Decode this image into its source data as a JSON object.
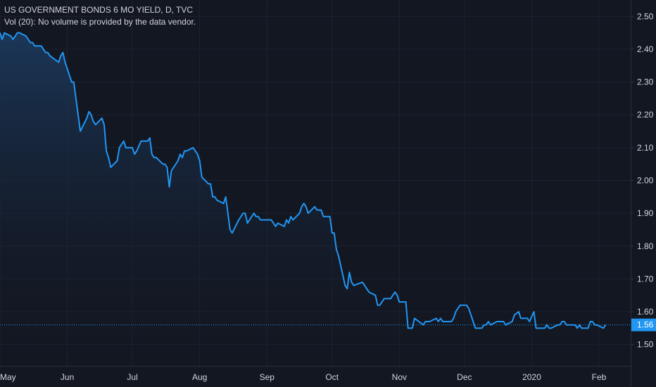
{
  "legend": {
    "title": "US GOVERNMENT BONDS 6 MO YIELD, D, TVC",
    "volume_note": "Vol (20): No volume is provided by the data vendor."
  },
  "colors": {
    "background": "#131722",
    "grid": "#1e2230",
    "line": "#2196f3",
    "area_top": "#1c3a5e",
    "text": "#d1d4dc",
    "last_price_label": "#2196f3"
  },
  "chart_data": {
    "type": "area",
    "title": "US GOVERNMENT BONDS 6 MO YIELD, D, TVC",
    "xlabel": "",
    "ylabel": "",
    "ylim": [
      1.435,
      2.55
    ],
    "yticks": [
      "2.50",
      "2.40",
      "2.30",
      "2.20",
      "2.10",
      "2.00",
      "1.90",
      "1.80",
      "1.70",
      "1.60",
      "1.50"
    ],
    "xticks": [
      {
        "label": "May",
        "date": "2019-05-01"
      },
      {
        "label": "Jun",
        "date": "2019-06-01"
      },
      {
        "label": "Jul",
        "date": "2019-07-01"
      },
      {
        "label": "Aug",
        "date": "2019-08-01"
      },
      {
        "label": "Sep",
        "date": "2019-09-01"
      },
      {
        "label": "Oct",
        "date": "2019-10-01"
      },
      {
        "label": "Nov",
        "date": "2019-11-01"
      },
      {
        "label": "Dec",
        "date": "2019-12-01"
      },
      {
        "label": "2020",
        "date": "2020-01-01"
      },
      {
        "label": "Feb",
        "date": "2020-02-01"
      }
    ],
    "last_value": "1.56",
    "grid": true,
    "series": [
      {
        "x": [
          "2019-05-01",
          "2019-05-02",
          "2019-05-03",
          "2019-05-06",
          "2019-05-07",
          "2019-05-08",
          "2019-05-09",
          "2019-05-10",
          "2019-05-13",
          "2019-05-14",
          "2019-05-15",
          "2019-05-16",
          "2019-05-17",
          "2019-05-20",
          "2019-05-21",
          "2019-05-22",
          "2019-05-23",
          "2019-05-24",
          "2019-05-28",
          "2019-05-29",
          "2019-05-30",
          "2019-05-31",
          "2019-06-03",
          "2019-06-04",
          "2019-06-05",
          "2019-06-06",
          "2019-06-07",
          "2019-06-10",
          "2019-06-11",
          "2019-06-12",
          "2019-06-13",
          "2019-06-14",
          "2019-06-17",
          "2019-06-18",
          "2019-06-19",
          "2019-06-20",
          "2019-06-21",
          "2019-06-24",
          "2019-06-25",
          "2019-06-26",
          "2019-06-27",
          "2019-06-28",
          "2019-07-01",
          "2019-07-02",
          "2019-07-03",
          "2019-07-05",
          "2019-07-08",
          "2019-07-09",
          "2019-07-10",
          "2019-07-11",
          "2019-07-12",
          "2019-07-15",
          "2019-07-16",
          "2019-07-17",
          "2019-07-18",
          "2019-07-19",
          "2019-07-22",
          "2019-07-23",
          "2019-07-24",
          "2019-07-25",
          "2019-07-26",
          "2019-07-29",
          "2019-07-30",
          "2019-07-31",
          "2019-08-01",
          "2019-08-02",
          "2019-08-05",
          "2019-08-06",
          "2019-08-07",
          "2019-08-08",
          "2019-08-09",
          "2019-08-12",
          "2019-08-13",
          "2019-08-14",
          "2019-08-15",
          "2019-08-16",
          "2019-08-19",
          "2019-08-20",
          "2019-08-21",
          "2019-08-22",
          "2019-08-23",
          "2019-08-26",
          "2019-08-27",
          "2019-08-28",
          "2019-08-29",
          "2019-08-30",
          "2019-09-03",
          "2019-09-04",
          "2019-09-05",
          "2019-09-06",
          "2019-09-09",
          "2019-09-10",
          "2019-09-11",
          "2019-09-12",
          "2019-09-13",
          "2019-09-16",
          "2019-09-17",
          "2019-09-18",
          "2019-09-19",
          "2019-09-20",
          "2019-09-23",
          "2019-09-24",
          "2019-09-25",
          "2019-09-26",
          "2019-09-27",
          "2019-09-30",
          "2019-10-01",
          "2019-10-02",
          "2019-10-03",
          "2019-10-04",
          "2019-10-07",
          "2019-10-08",
          "2019-10-09",
          "2019-10-10",
          "2019-10-11",
          "2019-10-15",
          "2019-10-16",
          "2019-10-17",
          "2019-10-18",
          "2019-10-21",
          "2019-10-22",
          "2019-10-23",
          "2019-10-24",
          "2019-10-25",
          "2019-10-28",
          "2019-10-29",
          "2019-10-30",
          "2019-10-31",
          "2019-11-01",
          "2019-11-04",
          "2019-11-05",
          "2019-11-06",
          "2019-11-07",
          "2019-11-08",
          "2019-11-12",
          "2019-11-13",
          "2019-11-14",
          "2019-11-15",
          "2019-11-18",
          "2019-11-19",
          "2019-11-20",
          "2019-11-21",
          "2019-11-22",
          "2019-11-25",
          "2019-11-26",
          "2019-11-27",
          "2019-11-29",
          "2019-12-02",
          "2019-12-03",
          "2019-12-04",
          "2019-12-05",
          "2019-12-06",
          "2019-12-09",
          "2019-12-10",
          "2019-12-11",
          "2019-12-12",
          "2019-12-13",
          "2019-12-16",
          "2019-12-17",
          "2019-12-18",
          "2019-12-19",
          "2019-12-20",
          "2019-12-23",
          "2019-12-24",
          "2019-12-26",
          "2019-12-27",
          "2019-12-30",
          "2019-12-31",
          "2020-01-02",
          "2020-01-03",
          "2020-01-06",
          "2020-01-07",
          "2020-01-08",
          "2020-01-09",
          "2020-01-10",
          "2020-01-13",
          "2020-01-14",
          "2020-01-15",
          "2020-01-16",
          "2020-01-17",
          "2020-01-21",
          "2020-01-22",
          "2020-01-23",
          "2020-01-24",
          "2020-01-27",
          "2020-01-28",
          "2020-01-29",
          "2020-01-30",
          "2020-01-31",
          "2020-02-03",
          "2020-02-04"
        ],
        "values": [
          2.45,
          2.43,
          2.45,
          2.44,
          2.43,
          2.44,
          2.45,
          2.45,
          2.44,
          2.43,
          2.42,
          2.42,
          2.41,
          2.41,
          2.4,
          2.39,
          2.39,
          2.38,
          2.36,
          2.38,
          2.39,
          2.36,
          2.3,
          2.3,
          2.25,
          2.2,
          2.15,
          2.19,
          2.21,
          2.2,
          2.18,
          2.17,
          2.19,
          2.17,
          2.09,
          2.07,
          2.04,
          2.06,
          2.1,
          2.11,
          2.12,
          2.1,
          2.1,
          2.08,
          2.09,
          2.12,
          2.12,
          2.13,
          2.08,
          2.07,
          2.07,
          2.05,
          2.05,
          2.04,
          1.98,
          2.03,
          2.06,
          2.08,
          2.07,
          2.09,
          2.09,
          2.1,
          2.09,
          2.08,
          2.06,
          2.01,
          1.99,
          1.99,
          1.95,
          1.95,
          1.94,
          1.93,
          1.95,
          1.9,
          1.85,
          1.84,
          1.88,
          1.89,
          1.9,
          1.9,
          1.87,
          1.9,
          1.89,
          1.89,
          1.88,
          1.88,
          1.88,
          1.87,
          1.86,
          1.87,
          1.86,
          1.88,
          1.87,
          1.89,
          1.88,
          1.9,
          1.92,
          1.93,
          1.92,
          1.9,
          1.92,
          1.91,
          1.91,
          1.91,
          1.89,
          1.89,
          1.84,
          1.84,
          1.79,
          1.77,
          1.68,
          1.67,
          1.72,
          1.69,
          1.68,
          1.69,
          1.68,
          1.67,
          1.66,
          1.65,
          1.62,
          1.62,
          1.63,
          1.64,
          1.64,
          1.65,
          1.66,
          1.65,
          1.63,
          1.63,
          1.55,
          1.55,
          1.55,
          1.58,
          1.56,
          1.57,
          1.57,
          1.57,
          1.58,
          1.57,
          1.58,
          1.57,
          1.57,
          1.57,
          1.58,
          1.6,
          1.62,
          1.62,
          1.61,
          1.59,
          1.57,
          1.55,
          1.55,
          1.56,
          1.56,
          1.57,
          1.56,
          1.57,
          1.57,
          1.57,
          1.57,
          1.56,
          1.57,
          1.59,
          1.6,
          1.58,
          1.58,
          1.57,
          1.6,
          1.55,
          1.55,
          1.55,
          1.56,
          1.55,
          1.55,
          1.56,
          1.56,
          1.57,
          1.57,
          1.56,
          1.56,
          1.55,
          1.56,
          1.55,
          1.55,
          1.57,
          1.57,
          1.56,
          1.56,
          1.55,
          1.56
        ]
      }
    ]
  }
}
